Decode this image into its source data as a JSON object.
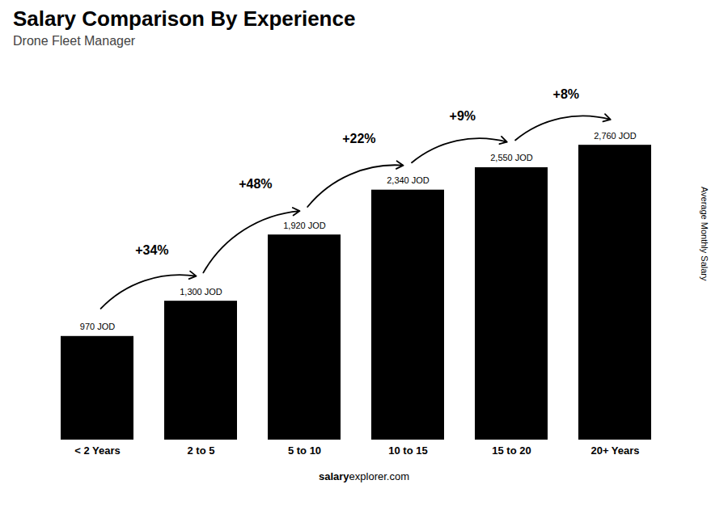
{
  "chart_data": {
    "type": "bar",
    "title": "Salary Comparison By Experience",
    "subtitle": "Drone Fleet Manager",
    "categories": [
      "< 2 Years",
      "2 to 5",
      "5 to 10",
      "10 to 15",
      "15 to 20",
      "20+ Years"
    ],
    "values": [
      970,
      1300,
      1920,
      2340,
      2550,
      2760
    ],
    "value_labels": [
      "970 JOD",
      "1,300 JOD",
      "1,920 JOD",
      "2,340 JOD",
      "2,550 JOD",
      "2,760 JOD"
    ],
    "data_labels": true,
    "ylabel": "Average Monthly Salary",
    "ylim": [
      0,
      2980.8
    ],
    "tick_labels": "x",
    "annotations": [
      "+34%",
      "+48%",
      "+22%",
      "+9%",
      "+8%"
    ],
    "caption": [
      "salary",
      "explorer.com"
    ]
  }
}
